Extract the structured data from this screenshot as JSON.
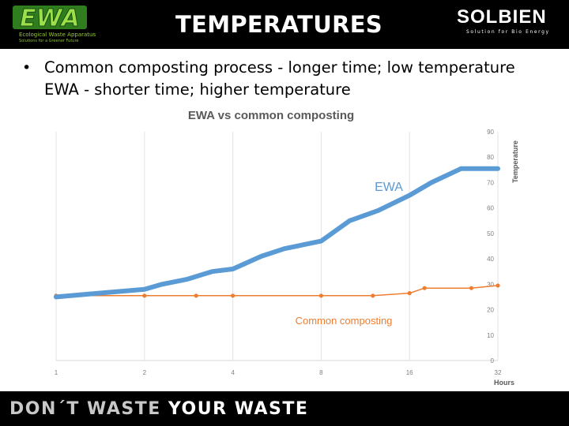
{
  "header": {
    "title": "TEMPERATURES",
    "ewa_logo": {
      "text": "EWA",
      "tagline": "Ecological Waste Apparatus",
      "subtagline": "Solutions for a Greener Future"
    },
    "solbien_logo": {
      "name": "SOLBIEN",
      "tagline": "Solution for Bio Energy"
    }
  },
  "bullets": [
    "Common composting process - longer time; low temperature",
    "EWA - shorter time; higher temperature"
  ],
  "chart_data": {
    "type": "line",
    "title": "EWA vs common composting",
    "xlabel": "Hours",
    "ylabel": "Temperature",
    "x_scale": "log2",
    "x_ticks": [
      1,
      2,
      4,
      8,
      16,
      32
    ],
    "y_ticks": [
      0,
      10,
      20,
      30,
      40,
      50,
      60,
      70,
      80,
      90
    ],
    "ylim": [
      0,
      90
    ],
    "xlim": [
      1,
      32
    ],
    "grid": "vertical-lines",
    "y_axis_side": "right",
    "series": [
      {
        "name": "EWA",
        "color": "#5b9bd5",
        "x": [
          1,
          1.4,
          2,
          2.3,
          2.8,
          3.4,
          4,
          5,
          6,
          8,
          10,
          12.5,
          16,
          19,
          24,
          32
        ],
        "y": [
          25,
          26.5,
          28,
          30,
          32,
          35,
          36,
          41,
          44,
          47,
          55,
          59,
          65,
          70,
          75.5,
          75.5
        ]
      },
      {
        "name": "Common composting",
        "color": "#ed7d31",
        "x": [
          1,
          2,
          3,
          4,
          8,
          12,
          16,
          18,
          26,
          32
        ],
        "y": [
          25.5,
          25.5,
          25.5,
          25.5,
          25.5,
          25.5,
          26.5,
          28.5,
          28.5,
          29.5
        ]
      }
    ]
  },
  "footer": {
    "text_a": "DON´T WASTE ",
    "text_b": "YOUR WASTE"
  }
}
